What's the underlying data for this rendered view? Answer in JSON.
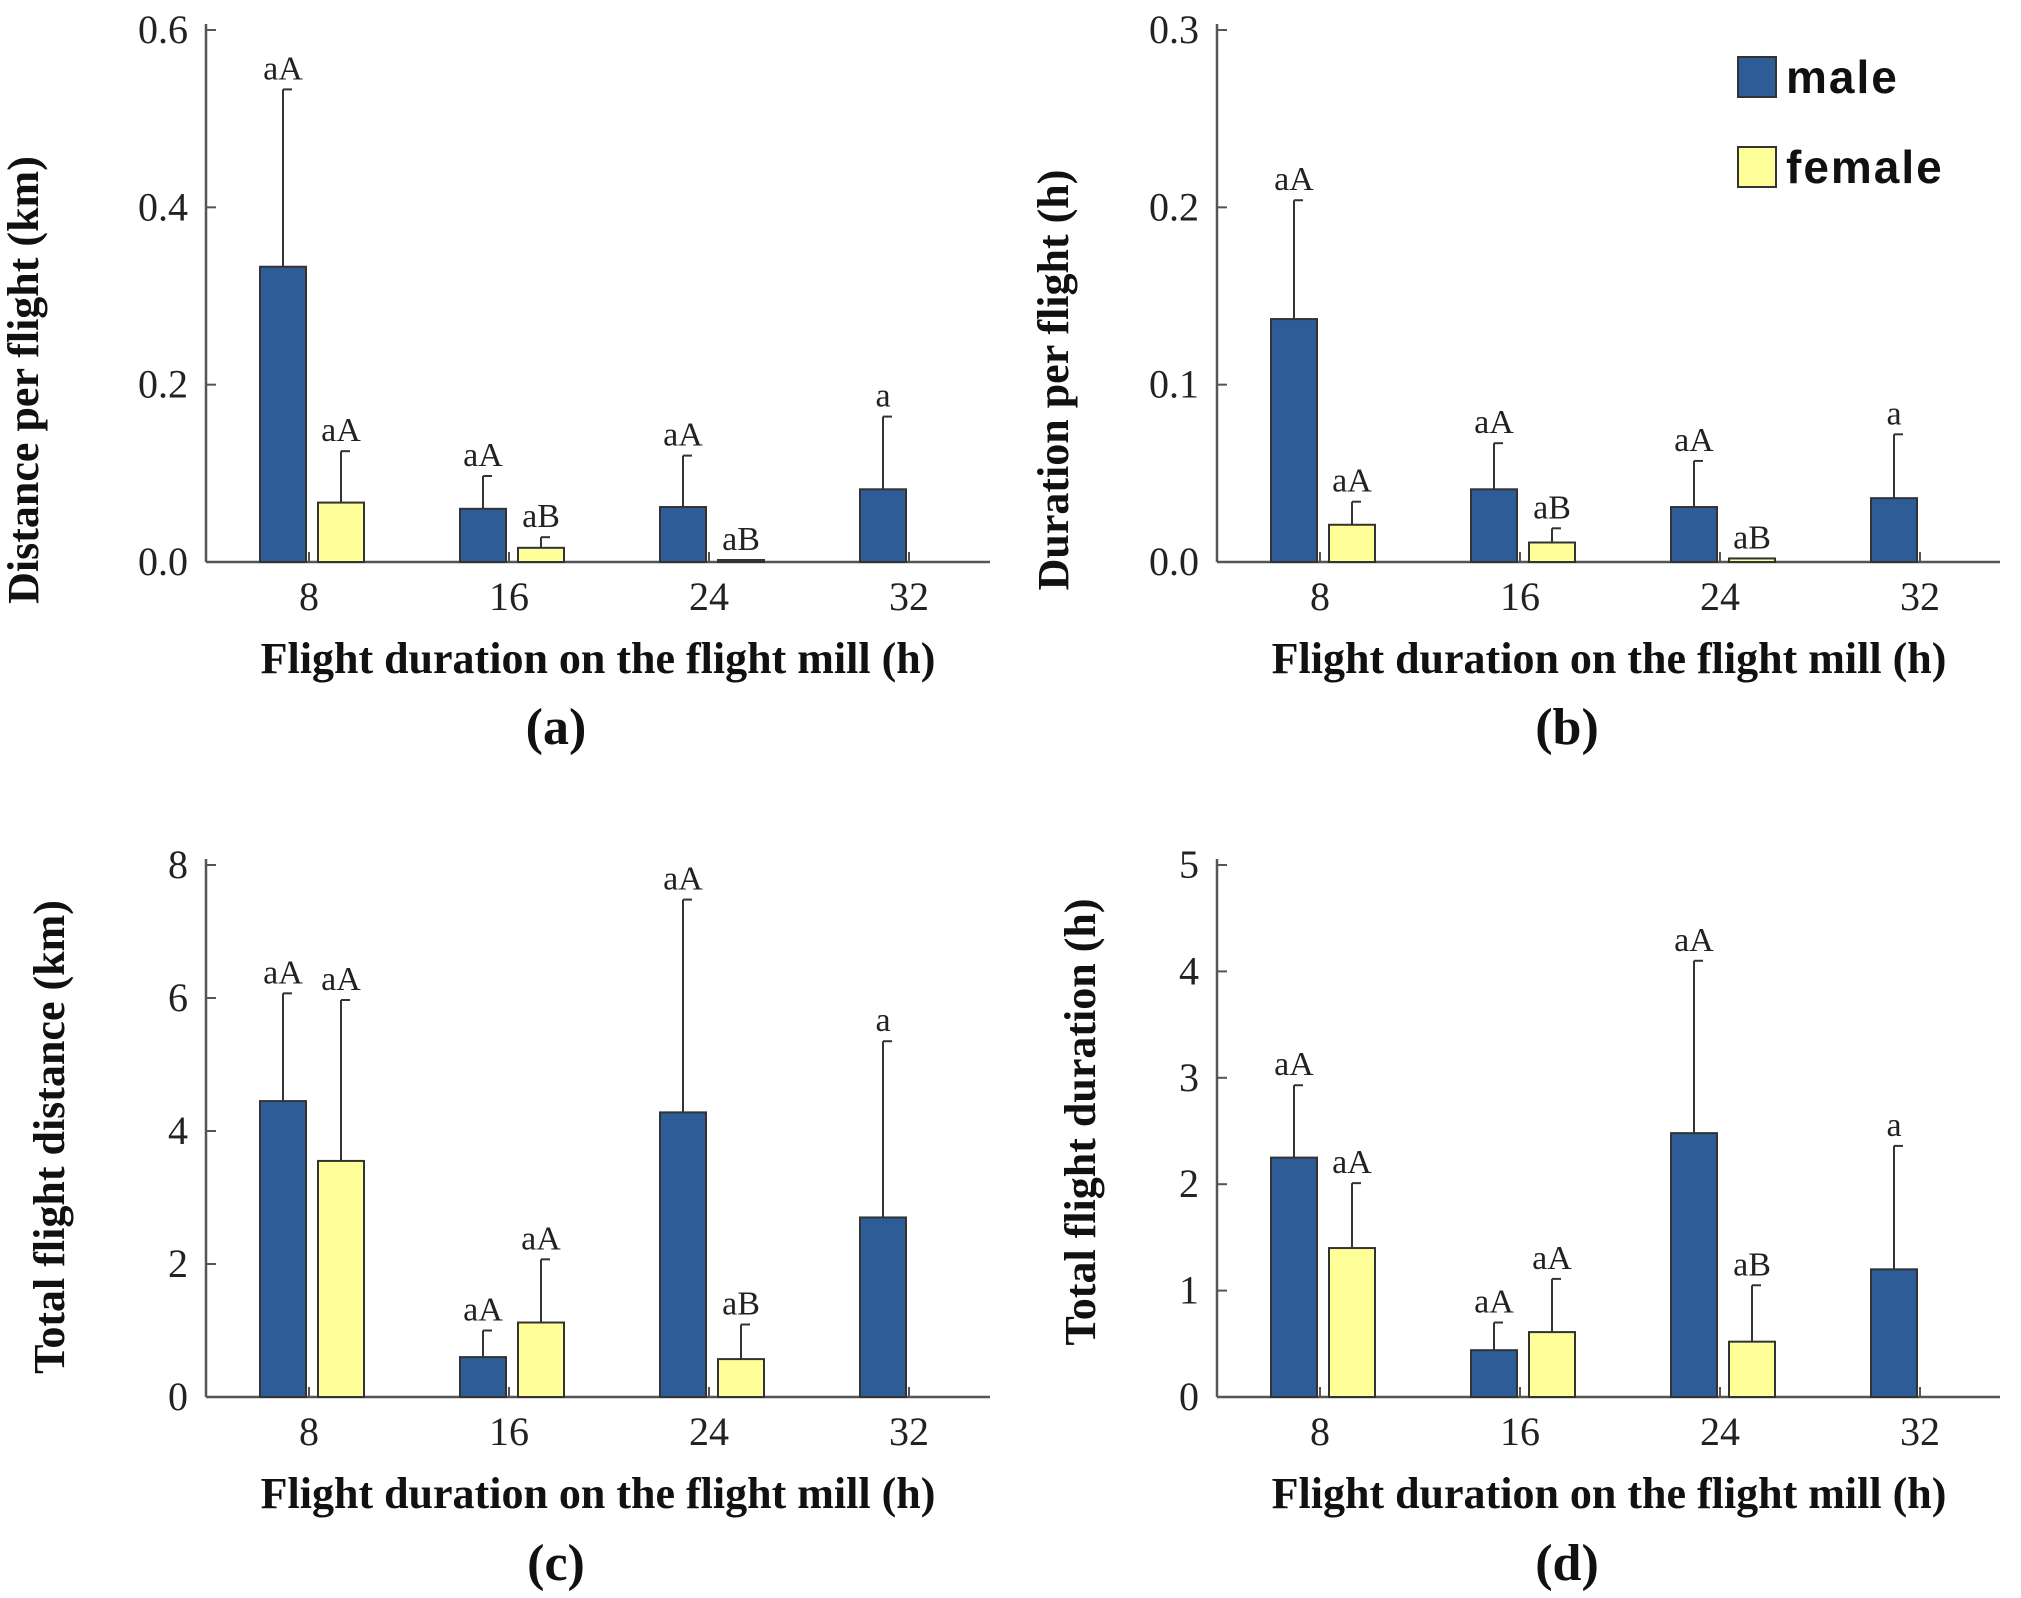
{
  "colors": {
    "male": "#2e5c96",
    "female": "#ffff99",
    "axis": "#555555",
    "error": "#333333"
  },
  "legend": {
    "placement": "top-right of panel (b)",
    "items": [
      {
        "name": "male"
      },
      {
        "name": "female"
      }
    ]
  },
  "chart_data": [
    {
      "type": "bar",
      "panel": "(a)",
      "xlabel": "Flight duration on the flight mill (h)",
      "ylabel": "Distance per flight (km)",
      "ylim": [
        0,
        0.6
      ],
      "yticks": [
        "0.0",
        "0.2",
        "0.4",
        "0.6"
      ],
      "categories": [
        "8",
        "16",
        "24",
        "32"
      ],
      "series": [
        {
          "name": "male",
          "values": [
            0.333,
            0.06,
            0.062,
            0.082
          ],
          "errors": [
            0.2,
            0.037,
            0.058,
            0.082
          ],
          "labels": [
            "aA",
            "aA",
            "aA",
            "a"
          ]
        },
        {
          "name": "female",
          "values": [
            0.067,
            0.016,
            0.002,
            null
          ],
          "errors": [
            0.058,
            0.012,
            0.0,
            null
          ],
          "labels": [
            "aA",
            "aB",
            "aB",
            null
          ]
        }
      ]
    },
    {
      "type": "bar",
      "panel": "(b)",
      "xlabel": "Flight duration on the flight mill (h)",
      "ylabel": "Duration per flight (h)",
      "ylim": [
        0,
        0.3
      ],
      "yticks": [
        "0.0",
        "0.1",
        "0.2",
        "0.3"
      ],
      "categories": [
        "8",
        "16",
        "24",
        "32"
      ],
      "series": [
        {
          "name": "male",
          "values": [
            0.137,
            0.041,
            0.031,
            0.036
          ],
          "errors": [
            0.067,
            0.026,
            0.026,
            0.036
          ],
          "labels": [
            "aA",
            "aA",
            "aA",
            "a"
          ]
        },
        {
          "name": "female",
          "values": [
            0.021,
            0.011,
            0.002,
            null
          ],
          "errors": [
            0.013,
            0.008,
            0.0,
            null
          ],
          "labels": [
            "aA",
            "aB",
            "aB",
            null
          ]
        }
      ]
    },
    {
      "type": "bar",
      "panel": "(c)",
      "xlabel": "Flight duration on the flight mill (h)",
      "ylabel": "Total flight distance (km)",
      "ylim": [
        0,
        8
      ],
      "yticks": [
        "0",
        "2",
        "4",
        "6",
        "8"
      ],
      "categories": [
        "8",
        "16",
        "24",
        "32"
      ],
      "series": [
        {
          "name": "male",
          "values": [
            4.45,
            0.6,
            4.28,
            2.7
          ],
          "errors": [
            1.62,
            0.4,
            3.2,
            2.65
          ],
          "labels": [
            "aA",
            "aA",
            "aA",
            "a"
          ]
        },
        {
          "name": "female",
          "values": [
            3.55,
            1.12,
            0.57,
            null
          ],
          "errors": [
            2.42,
            0.95,
            0.52,
            null
          ],
          "labels": [
            "aA",
            "aA",
            "aB",
            null
          ]
        }
      ]
    },
    {
      "type": "bar",
      "panel": "(d)",
      "xlabel": "Flight duration on the flight mill (h)",
      "ylabel": "Total flight duration (h)",
      "ylim": [
        0,
        5
      ],
      "yticks": [
        "0",
        "1",
        "2",
        "3",
        "4",
        "5"
      ],
      "categories": [
        "8",
        "16",
        "24",
        "32"
      ],
      "series": [
        {
          "name": "male",
          "values": [
            2.25,
            0.44,
            2.48,
            1.2
          ],
          "errors": [
            0.68,
            0.26,
            1.62,
            1.16
          ],
          "labels": [
            "aA",
            "aA",
            "aA",
            "a"
          ]
        },
        {
          "name": "female",
          "values": [
            1.4,
            0.61,
            0.52,
            null
          ],
          "errors": [
            0.61,
            0.5,
            0.53,
            null
          ],
          "labels": [
            "aA",
            "aA",
            "aB",
            null
          ]
        }
      ]
    }
  ]
}
